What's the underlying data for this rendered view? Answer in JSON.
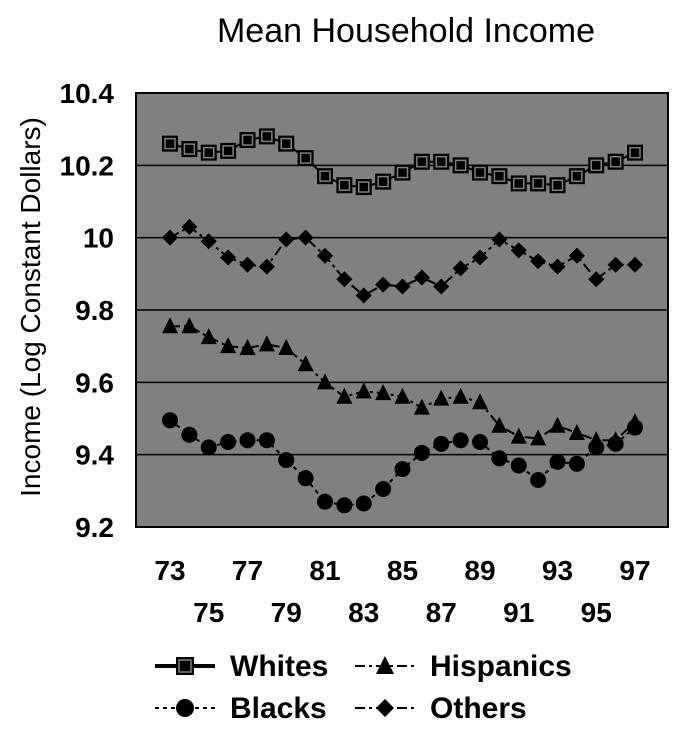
{
  "chart_data": {
    "type": "line",
    "title": "Mean Household Income",
    "xlabel": "",
    "ylabel": "Income (Log Constant Dollars)",
    "ylim": [
      9.2,
      10.4
    ],
    "yticks": [
      "9.2",
      "9.4",
      "9.6",
      "9.8",
      "10",
      "10.2",
      "10.4"
    ],
    "ytick_values": [
      9.2,
      9.4,
      9.6,
      9.8,
      10.0,
      10.2,
      10.4
    ],
    "xtick_labels": [
      "73",
      "75",
      "77",
      "79",
      "81",
      "83",
      "85",
      "87",
      "89",
      "91",
      "93",
      "95",
      "97"
    ],
    "xtick_values": [
      73,
      75,
      77,
      79,
      81,
      83,
      85,
      87,
      89,
      91,
      93,
      95,
      97
    ],
    "x": [
      73,
      74,
      75,
      76,
      77,
      78,
      79,
      80,
      81,
      82,
      83,
      84,
      85,
      86,
      87,
      88,
      89,
      90,
      91,
      92,
      93,
      94,
      95,
      96,
      97
    ],
    "grid": true,
    "plot_background": "#808080",
    "legend_position": "bottom",
    "series": [
      {
        "name": "Whites",
        "marker": "square",
        "line_style": "solid",
        "values": [
          10.26,
          10.245,
          10.235,
          10.24,
          10.27,
          10.28,
          10.26,
          10.22,
          10.17,
          10.145,
          10.14,
          10.155,
          10.18,
          10.21,
          10.21,
          10.2,
          10.18,
          10.17,
          10.15,
          10.15,
          10.145,
          10.17,
          10.2,
          10.21,
          10.235
        ]
      },
      {
        "name": "Hispanics",
        "marker": "triangle",
        "line_style": "dashdot",
        "values": [
          9.755,
          9.755,
          9.725,
          9.7,
          9.695,
          9.705,
          9.695,
          9.65,
          9.6,
          9.56,
          9.575,
          9.57,
          9.56,
          9.53,
          9.555,
          9.56,
          9.545,
          9.48,
          9.45,
          9.445,
          9.48,
          9.46,
          9.44,
          9.44,
          9.49
        ]
      },
      {
        "name": "Blacks",
        "marker": "circle",
        "line_style": "dashed",
        "values": [
          9.495,
          9.455,
          9.42,
          9.435,
          9.44,
          9.44,
          9.385,
          9.335,
          9.27,
          9.26,
          9.265,
          9.305,
          9.36,
          9.405,
          9.43,
          9.44,
          9.435,
          9.39,
          9.37,
          9.33,
          9.38,
          9.375,
          9.42,
          9.43,
          9.475
        ]
      },
      {
        "name": "Others",
        "marker": "diamond",
        "line_style": "dashdot",
        "values": [
          10.0,
          10.03,
          9.99,
          9.945,
          9.925,
          9.92,
          9.995,
          10.0,
          9.95,
          9.885,
          9.84,
          9.87,
          9.865,
          9.89,
          9.865,
          9.915,
          9.945,
          9.995,
          9.965,
          9.935,
          9.92,
          9.95,
          9.885,
          9.925,
          9.925
        ]
      }
    ]
  }
}
